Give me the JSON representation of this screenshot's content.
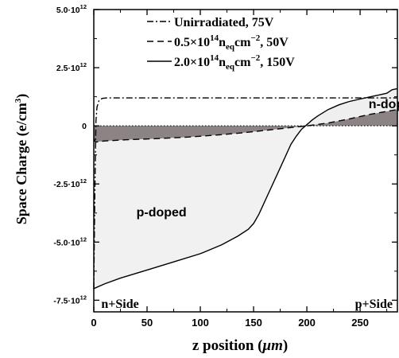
{
  "chart_data": {
    "type": "line",
    "xlabel_prefix": "z position (",
    "xlabel_unit": "μm",
    "xlabel_suffix": ")",
    "ylabel_prefix": "Space Charge (e/cm",
    "ylabel_exp": "3",
    "ylabel_suffix": ")",
    "xlim": [
      0,
      285
    ],
    "ylim": [
      -8000000000000.0,
      5000000000000.0
    ],
    "x_ticks": [
      {
        "v": 0,
        "label": "0"
      },
      {
        "v": 50,
        "label": "50"
      },
      {
        "v": 100,
        "label": "100"
      },
      {
        "v": 150,
        "label": "150"
      },
      {
        "v": 200,
        "label": "200"
      },
      {
        "v": 250,
        "label": "250"
      }
    ],
    "y_ticks": [
      {
        "v": 5000000000000.0,
        "mant": "5.0·10",
        "exp": "12"
      },
      {
        "v": 2500000000000.0,
        "mant": "2.5·10",
        "exp": "12"
      },
      {
        "v": 0,
        "mant": "0",
        "exp": ""
      },
      {
        "v": -2500000000000.0,
        "mant": "-2.5·10",
        "exp": "12"
      },
      {
        "v": -5000000000000.0,
        "mant": "-5.0·10",
        "exp": "12"
      },
      {
        "v": -7500000000000.0,
        "mant": "-7.5·10",
        "exp": "12"
      }
    ],
    "legend_position": "top-right",
    "series": [
      {
        "id": "unirr",
        "legend": {
          "parts": [
            {
              "t": "Unirradiated, 75V"
            }
          ]
        },
        "style": "dashdot",
        "x": [
          0,
          1,
          2,
          3,
          5,
          8,
          12,
          20,
          285
        ],
        "y": [
          -7000000000000.0,
          -3000000000000.0,
          200000000000.0,
          800000000000.0,
          1100000000000.0,
          1180000000000.0,
          1200000000000.0,
          1200000000000.0,
          1200000000000.0
        ]
      },
      {
        "id": "lowfluence",
        "legend": {
          "parts": [
            {
              "t": "0.5×10"
            },
            {
              "t": "14",
              "sup": true
            },
            {
              "t": "n"
            },
            {
              "t": "eq",
              "sub": true
            },
            {
              "t": "cm"
            },
            {
              "t": "−2",
              "sup": true
            },
            {
              "t": ", 50V"
            }
          ]
        },
        "style": "dashed",
        "x": [
          0,
          1,
          2,
          5,
          10,
          30,
          60,
          90,
          120,
          140,
          160,
          180,
          200,
          220,
          240,
          260,
          285
        ],
        "y": [
          -550000000000.0,
          -650000000000.0,
          -700000000000.0,
          -680000000000.0,
          -650000000000.0,
          -600000000000.0,
          -550000000000.0,
          -480000000000.0,
          -380000000000.0,
          -300000000000.0,
          -200000000000.0,
          -100000000000.0,
          0.0,
          120000000000.0,
          300000000000.0,
          500000000000.0,
          700000000000.0
        ]
      },
      {
        "id": "highfluence",
        "legend": {
          "parts": [
            {
              "t": "2.0×10"
            },
            {
              "t": "14",
              "sup": true
            },
            {
              "t": "n"
            },
            {
              "t": "eq",
              "sub": true
            },
            {
              "t": "cm"
            },
            {
              "t": "−2",
              "sup": true
            },
            {
              "t": ", 150V"
            }
          ]
        },
        "style": "solid",
        "x": [
          0,
          10,
          25,
          50,
          75,
          100,
          120,
          135,
          145,
          150,
          155,
          160,
          165,
          170,
          175,
          180,
          185,
          190,
          195,
          200,
          205,
          210,
          220,
          230,
          240,
          250,
          260,
          270,
          275,
          280,
          285
        ],
        "y": [
          -7000000000000.0,
          -6800000000000.0,
          -6550000000000.0,
          -6200000000000.0,
          -5850000000000.0,
          -5500000000000.0,
          -5120000000000.0,
          -4750000000000.0,
          -4450000000000.0,
          -4200000000000.0,
          -3800000000000.0,
          -3300000000000.0,
          -2800000000000.0,
          -2300000000000.0,
          -1800000000000.0,
          -1300000000000.0,
          -800000000000.0,
          -450000000000.0,
          -150000000000.0,
          50000000000.0,
          250000000000.0,
          420000000000.0,
          700000000000.0,
          900000000000.0,
          1050000000000.0,
          1150000000000.0,
          1250000000000.0,
          1350000000000.0,
          1400000000000.0,
          1550000000000.0,
          1600000000000.0
        ]
      }
    ],
    "annotations": [
      {
        "text": "n-doped",
        "x": 258,
        "y": 750000000000.0
      },
      {
        "text": "p-doped",
        "x": 40,
        "y": -3900000000000.0
      }
    ],
    "corner_labels": {
      "left": "n+Side",
      "right": "p+Side"
    },
    "colors": {
      "n_fill": "#efefef",
      "p_fill": "#f1f1f1",
      "band_fill": "#8c8484",
      "line": "#000000"
    }
  }
}
